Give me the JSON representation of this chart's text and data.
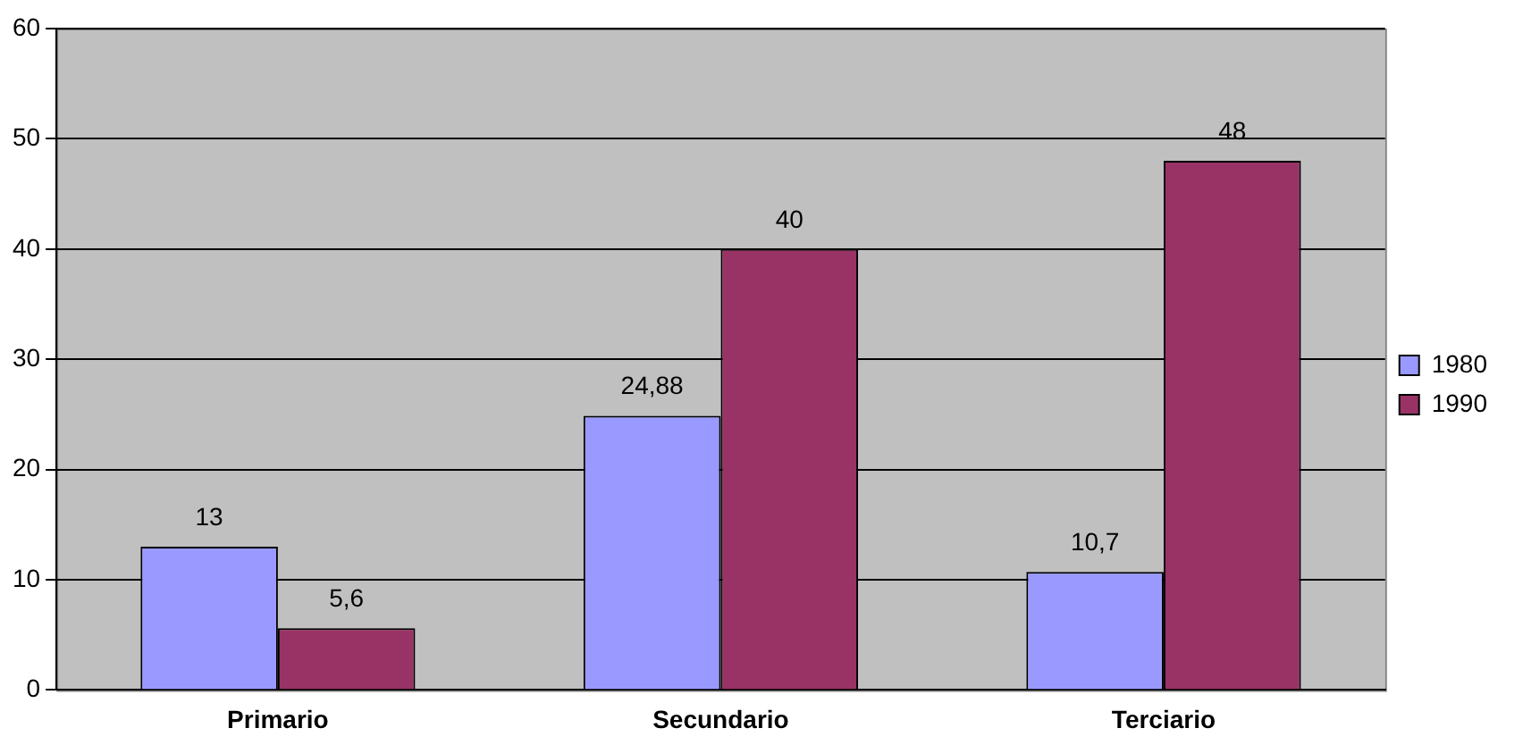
{
  "chart_data": {
    "type": "bar",
    "categories": [
      "Primario",
      "Secundario",
      "Terciario"
    ],
    "series": [
      {
        "name": "1980",
        "color": "#9999ff",
        "values": [
          13,
          24.88,
          10.7
        ],
        "value_labels": [
          "13",
          "24,88",
          "10,7"
        ]
      },
      {
        "name": "1990",
        "color": "#993366",
        "values": [
          5.6,
          40,
          48
        ],
        "value_labels": [
          "5,6",
          "40",
          "48"
        ]
      }
    ],
    "ylim": [
      0,
      60
    ],
    "yticks": [
      0,
      10,
      20,
      30,
      40,
      50,
      60
    ],
    "grid": "y",
    "legend": "right"
  }
}
